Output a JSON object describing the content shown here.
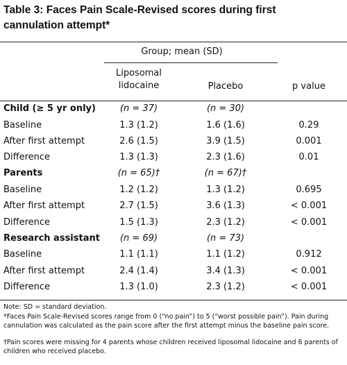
{
  "title": "Table 3: Faces Pain Scale-Revised scores during first cannulation attempt*",
  "table": {
    "group_header": "Group; mean (SD)",
    "columns": [
      "Liposomal lidocaine",
      "Placebo",
      "p value"
    ],
    "sections": [
      {
        "label": "Child (≥ 5 yr only)",
        "n": [
          "(n = 37)",
          "(n = 30)"
        ],
        "rows": [
          [
            "Baseline",
            "1.3 (1.2)",
            "1.6 (1.6)",
            "0.29"
          ],
          [
            "After first attempt",
            "2.6 (1.5)",
            "3.9 (1.5)",
            "0.001"
          ],
          [
            "Difference",
            "1.3 (1.3)",
            "2.3 (1.6)",
            "0.01"
          ]
        ]
      },
      {
        "label": "Parents",
        "n": [
          "(n = 65)†",
          "(n = 67)†"
        ],
        "rows": [
          [
            "Baseline",
            "1.2 (1.2)",
            "1.3 (1.2)",
            "0.695"
          ],
          [
            "After first attempt",
            "2.7 (1.5)",
            "3.6 (1.3)",
            "< 0.001"
          ],
          [
            "Difference",
            "1.5 (1.3)",
            "2.3 (1.2)",
            "< 0.001"
          ]
        ]
      },
      {
        "label": "Research assistant",
        "n": [
          "(n = 69)",
          "(n = 73)"
        ],
        "rows": [
          [
            "Baseline",
            "1.1 (1.1)",
            "1.1 (1.2)",
            "0.912"
          ],
          [
            "After first attempt",
            "2.4 (1.4)",
            "3.4 (1.3)",
            "< 0.001"
          ],
          [
            "Difference",
            "1.3 (1.0)",
            "2.3 (1.2)",
            "< 0.001"
          ]
        ]
      }
    ]
  },
  "notes": [
    "Note: SD = standard deviation.",
    "*Faces Pain Scale-Revised scores range from 0 (“no pain”) to 5 (“worst possible pain”). Pain during cannulation was calculated as the pain score after the first attempt minus the baseline pain score.",
    "†Pain scores were missing for 4 parents whose children received liposomal lidocaine and 6 parents of children who received placebo."
  ]
}
